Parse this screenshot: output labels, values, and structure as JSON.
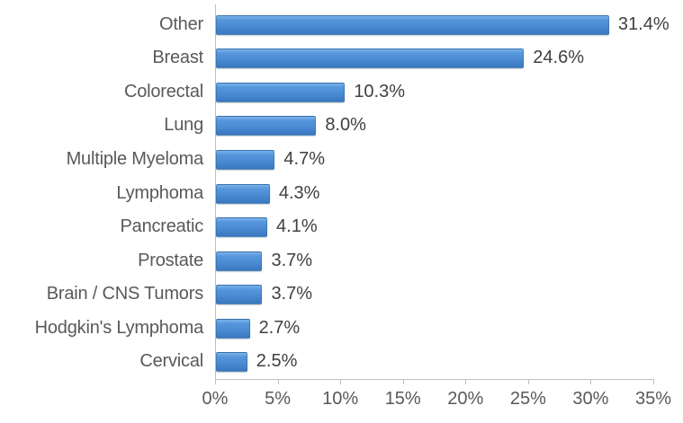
{
  "chart_data": {
    "type": "bar",
    "orientation": "horizontal",
    "title": "",
    "xlabel": "",
    "ylabel": "",
    "categories": [
      "Other",
      "Breast",
      "Colorectal",
      "Lung",
      "Multiple Myeloma",
      "Lymphoma",
      "Pancreatic",
      "Prostate",
      "Brain / CNS Tumors",
      "Hodgkin's Lymphoma",
      "Cervical"
    ],
    "values": [
      31.4,
      24.6,
      10.3,
      8.0,
      4.7,
      4.3,
      4.1,
      3.7,
      3.7,
      2.7,
      2.5
    ],
    "data_labels": [
      "31.4%",
      "24.6%",
      "10.3%",
      "8.0%",
      "4.7%",
      "4.3%",
      "4.1%",
      "3.7%",
      "3.7%",
      "2.7%",
      "2.5%"
    ],
    "x_ticks": [
      "0%",
      "5%",
      "10%",
      "15%",
      "20%",
      "25%",
      "30%",
      "35%"
    ],
    "xlim": [
      0,
      35
    ],
    "grid": false,
    "legend": "none",
    "bar_color": "#4E8FD2",
    "category_label_color": "#595959",
    "value_label_color": "#404040",
    "axis_color": "#BFBFBF",
    "background_color": "#FFFFFF"
  }
}
